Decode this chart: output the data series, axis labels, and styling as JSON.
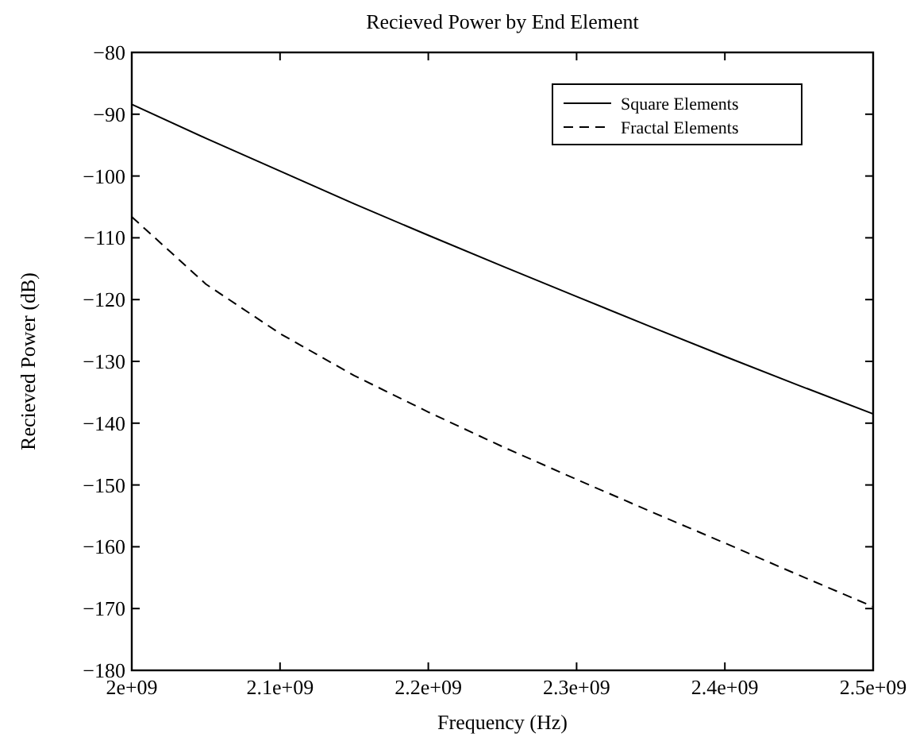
{
  "chart_data": {
    "type": "line",
    "title": "Recieved Power by End Element",
    "xlabel": "Frequency (Hz)",
    "ylabel": "Recieved Power (dB)",
    "x": [
      2000000000.0,
      2050000000.0,
      2100000000.0,
      2150000000.0,
      2200000000.0,
      2250000000.0,
      2300000000.0,
      2350000000.0,
      2400000000.0,
      2450000000.0,
      2500000000.0
    ],
    "series": [
      {
        "name": "Square Elements",
        "color": "#000000",
        "line_style": "solid",
        "values": [
          -88.4,
          -93.9,
          -99.2,
          -104.5,
          -109.6,
          -114.6,
          -119.5,
          -124.4,
          -129.2,
          -133.9,
          -138.5
        ]
      },
      {
        "name": "Fractal Elements",
        "color": "#000000",
        "line_style": "dashed",
        "values": [
          -106.6,
          -117.5,
          -125.5,
          -132.3,
          -138.2,
          -143.8,
          -149.1,
          -154.3,
          -159.4,
          -164.6,
          -169.7
        ]
      }
    ],
    "xlim": [
      2000000000.0,
      2500000000.0
    ],
    "ylim": [
      -180,
      -80
    ],
    "xticks": [
      {
        "value": 2000000000.0,
        "label": "2e+09"
      },
      {
        "value": 2100000000.0,
        "label": "2.1e+09"
      },
      {
        "value": 2200000000.0,
        "label": "2.2e+09"
      },
      {
        "value": 2300000000.0,
        "label": "2.3e+09"
      },
      {
        "value": 2400000000.0,
        "label": "2.4e+09"
      },
      {
        "value": 2500000000.0,
        "label": "2.5e+09"
      }
    ],
    "yticks": [
      {
        "value": -180,
        "label": "−180"
      },
      {
        "value": -170,
        "label": "−170"
      },
      {
        "value": -160,
        "label": "−160"
      },
      {
        "value": -150,
        "label": "−150"
      },
      {
        "value": -140,
        "label": "−140"
      },
      {
        "value": -130,
        "label": "−130"
      },
      {
        "value": -120,
        "label": "−120"
      },
      {
        "value": -110,
        "label": "−110"
      },
      {
        "value": -100,
        "label": "−100"
      },
      {
        "value": -90,
        "label": "−90"
      },
      {
        "value": -80,
        "label": "−80"
      }
    ],
    "legend": "top right",
    "grid": false
  }
}
